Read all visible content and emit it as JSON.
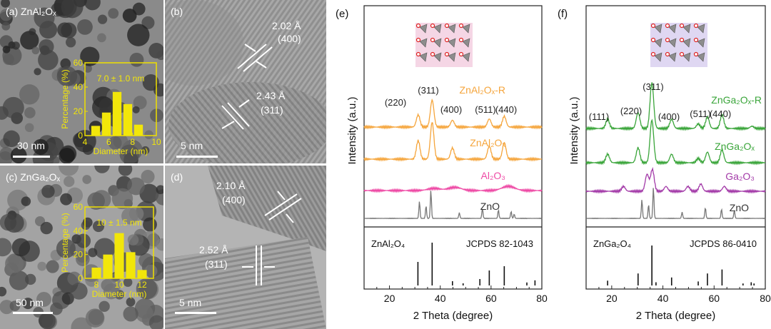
{
  "micrographs": {
    "a": {
      "label": "(a) ZnAl₂Oₓ",
      "scale_bar": "30 nm",
      "inset": {
        "annotation": "7.0 ± 1.0 nm",
        "ylabel": "Percentage (%)",
        "xlabel": "Diameter (nm)",
        "yticks": [
          "0",
          "20",
          "40",
          "60"
        ],
        "xticks": [
          "4",
          "6",
          "8",
          "10"
        ],
        "bins": [
          {
            "x": 4.9,
            "value": 8
          },
          {
            "x": 5.8,
            "value": 19
          },
          {
            "x": 6.7,
            "value": 36
          },
          {
            "x": 7.6,
            "value": 26
          },
          {
            "x": 8.5,
            "value": 9
          }
        ]
      }
    },
    "b": {
      "label": "(b)",
      "scale_bar": "5 nm",
      "spacings": [
        {
          "d": "2.02 Å",
          "plane": "(400)"
        },
        {
          "d": "2.43 Å",
          "plane": "(311)"
        }
      ]
    },
    "c": {
      "label": "(c) ZnGa₂Oₓ",
      "scale_bar": "50 nm",
      "inset": {
        "annotation": "10 ± 1.5 nm",
        "ylabel": "Percentage (%)",
        "xlabel": "Diameter (nm)",
        "yticks": [
          "0",
          "20",
          "40",
          "60"
        ],
        "xticks": [
          "8",
          "10",
          "12"
        ],
        "bins": [
          {
            "x": 8,
            "value": 9
          },
          {
            "x": 9,
            "value": 20
          },
          {
            "x": 10,
            "value": 38
          },
          {
            "x": 11,
            "value": 22
          },
          {
            "x": 12,
            "value": 7
          }
        ]
      }
    },
    "d": {
      "label": "(d)",
      "scale_bar": "5 nm",
      "spacings": [
        {
          "d": "2.10 Å",
          "plane": "(400)"
        },
        {
          "d": "2.52 Å",
          "plane": "(311)"
        }
      ]
    }
  },
  "chart_data": [
    {
      "panel": "(e)",
      "type": "line",
      "xlabel": "2 Theta (degree)",
      "ylabel": "Intensity (a.u.)",
      "xlim": [
        10,
        80
      ],
      "xticks": [
        20,
        40,
        60,
        80
      ],
      "peak_labels": [
        "(220)",
        "(311)",
        "(400)",
        "(511)",
        "(440)"
      ],
      "series": [
        {
          "name": "ZnAl₂Oₓ-R",
          "color": "#f5a53c",
          "peaks": [
            [
              31.3,
              0.45
            ],
            [
              36.8,
              1.0
            ],
            [
              44.8,
              0.25
            ],
            [
              59.3,
              0.3
            ],
            [
              65.2,
              0.4
            ]
          ]
        },
        {
          "name": "ZnAl₂Oₓ",
          "color": "#f5a53c",
          "peaks": [
            [
              31.3,
              0.5
            ],
            [
              36.8,
              1.0
            ],
            [
              44.8,
              0.3
            ],
            [
              59.3,
              0.35
            ],
            [
              65.2,
              0.45
            ]
          ]
        },
        {
          "name": "Al₂O₃",
          "color": "#ee4aa5",
          "peaks": [
            [
              37.6,
              0.3
            ],
            [
              45.8,
              0.45
            ],
            [
              66.8,
              0.6
            ]
          ]
        },
        {
          "name": "ZnO",
          "color": "#777777",
          "peaks": [
            [
              31.8,
              0.6
            ],
            [
              34.4,
              0.45
            ],
            [
              36.3,
              1.0
            ],
            [
              47.5,
              0.2
            ],
            [
              56.6,
              0.35
            ],
            [
              62.9,
              0.3
            ],
            [
              67.9,
              0.25
            ],
            [
              69.1,
              0.15
            ]
          ]
        }
      ],
      "reference": {
        "name": "ZnAl₂O₄",
        "card": "JCPDS 82-1043",
        "lines": [
          [
            31.2,
            0.55
          ],
          [
            36.8,
            1.0
          ],
          [
            44.8,
            0.1
          ],
          [
            49.0,
            0.05
          ],
          [
            55.6,
            0.15
          ],
          [
            59.3,
            0.35
          ],
          [
            65.2,
            0.45
          ],
          [
            74.1,
            0.07
          ],
          [
            77.3,
            0.12
          ]
        ]
      }
    },
    {
      "panel": "(f)",
      "type": "line",
      "xlabel": "2 Theta (degree)",
      "ylabel": "Intensity (a.u.)",
      "xlim": [
        10,
        80
      ],
      "xticks": [
        20,
        40,
        60,
        80
      ],
      "peak_labels": [
        "(111)",
        "(220)",
        "(311)",
        "(400)",
        "(511)",
        "(440)"
      ],
      "series": [
        {
          "name": "ZnGa₂Oₓ-R",
          "color": "#3aa53a",
          "peaks": [
            [
              18.4,
              0.2
            ],
            [
              30.3,
              0.35
            ],
            [
              35.7,
              1.0
            ],
            [
              43.4,
              0.2
            ],
            [
              53.8,
              0.1
            ],
            [
              57.4,
              0.25
            ],
            [
              63.1,
              0.3
            ],
            [
              74.8,
              0.05
            ]
          ]
        },
        {
          "name": "ZnGa₂Oₓ",
          "color": "#3aa53a",
          "peaks": [
            [
              18.4,
              0.2
            ],
            [
              30.3,
              0.35
            ],
            [
              35.7,
              1.0
            ],
            [
              43.4,
              0.2
            ],
            [
              53.8,
              0.1
            ],
            [
              57.4,
              0.25
            ],
            [
              63.1,
              0.3
            ]
          ]
        },
        {
          "name": "Ga₂O₃",
          "color": "#a33aa8",
          "peaks": [
            [
              24.6,
              0.2
            ],
            [
              33.8,
              0.7
            ],
            [
              35.9,
              0.9
            ],
            [
              41.2,
              0.2
            ],
            [
              49.8,
              0.2
            ],
            [
              54.8,
              0.3
            ],
            [
              64.0,
              0.2
            ]
          ]
        },
        {
          "name": "ZnO",
          "color": "#777777",
          "peaks": [
            [
              31.8,
              0.6
            ],
            [
              34.4,
              0.45
            ],
            [
              36.3,
              1.0
            ],
            [
              47.5,
              0.2
            ],
            [
              56.6,
              0.35
            ],
            [
              62.9,
              0.3
            ],
            [
              67.9,
              0.25
            ]
          ]
        }
      ],
      "reference": {
        "name": "ZnGa₂O₄",
        "card": "JCPDS 86-0410",
        "lines": [
          [
            18.4,
            0.12
          ],
          [
            30.3,
            0.3
          ],
          [
            35.7,
            1.0
          ],
          [
            37.3,
            0.08
          ],
          [
            43.4,
            0.2
          ],
          [
            53.8,
            0.1
          ],
          [
            57.4,
            0.3
          ],
          [
            63.1,
            0.4
          ],
          [
            71.3,
            0.05
          ],
          [
            74.5,
            0.08
          ],
          [
            75.6,
            0.05
          ]
        ]
      }
    }
  ]
}
